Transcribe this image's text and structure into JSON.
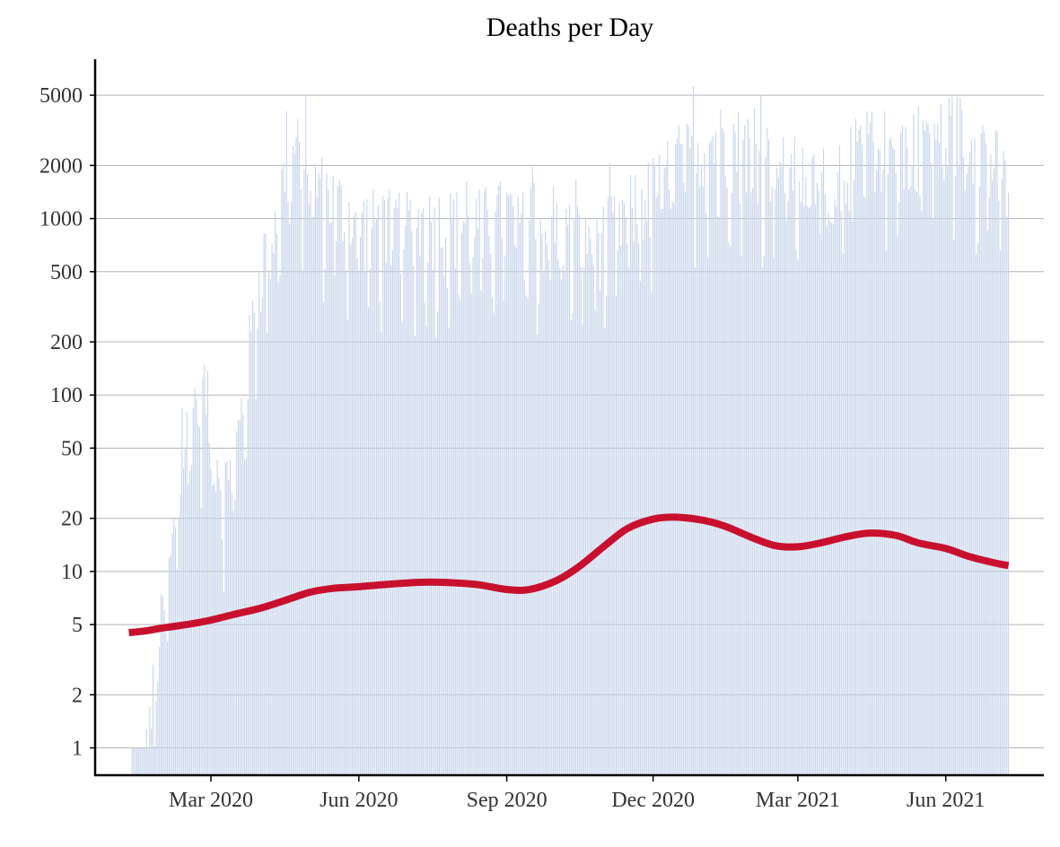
{
  "chart_data": {
    "type": "bar",
    "title": "Deaths per Day",
    "xlabel": "",
    "ylabel": "",
    "y_scale": "log",
    "ylim": [
      0.7,
      8000
    ],
    "x_range": [
      "2019-12-20",
      "2021-08-01"
    ],
    "y_ticks": [
      1,
      2,
      5,
      10,
      20,
      50,
      100,
      200,
      500,
      1000,
      2000,
      5000
    ],
    "y_tick_labels": [
      "1",
      "2",
      "5",
      "10",
      "20",
      "50",
      "100",
      "200",
      "500",
      "1000",
      "2000",
      "5000"
    ],
    "x_ticks": [
      "2020-03-01",
      "2020-06-01",
      "2020-09-01",
      "2020-12-01",
      "2021-03-01",
      "2021-06-01"
    ],
    "x_tick_labels": [
      "Mar 2020",
      "Jun 2020",
      "Sep 2020",
      "Dec 2020",
      "Mar 2021",
      "Jun 2021"
    ],
    "grid": true,
    "bar_color": "#c6d4ea",
    "trend_color": "#c8102e",
    "bar_envelope": {
      "dates": [
        "2020-01-12",
        "2020-01-20",
        "2020-01-28",
        "2020-02-05",
        "2020-02-12",
        "2020-02-19",
        "2020-02-26",
        "2020-03-05",
        "2020-03-12",
        "2020-03-19",
        "2020-03-26",
        "2020-04-02",
        "2020-04-09",
        "2020-04-16",
        "2020-04-23",
        "2020-05-01",
        "2020-05-15",
        "2020-06-01",
        "2020-06-15",
        "2020-07-01",
        "2020-07-15",
        "2020-08-01",
        "2020-08-15",
        "2020-09-01",
        "2020-09-15",
        "2020-10-01",
        "2020-10-15",
        "2020-11-01",
        "2020-11-15",
        "2020-12-01",
        "2020-12-15",
        "2021-01-01",
        "2021-01-15",
        "2021-02-01",
        "2021-02-15",
        "2021-03-01",
        "2021-03-15",
        "2021-04-01",
        "2021-04-15",
        "2021-05-01",
        "2021-05-15",
        "2021-06-01",
        "2021-06-15",
        "2021-07-01",
        "2021-07-10"
      ],
      "max": [
        1,
        1,
        5,
        15,
        60,
        120,
        150,
        60,
        40,
        90,
        300,
        800,
        1200,
        2500,
        3500,
        2500,
        1800,
        1300,
        1300,
        1300,
        1300,
        1300,
        1300,
        1500,
        1200,
        1200,
        1100,
        1100,
        1500,
        2000,
        3000,
        3500,
        4000,
        3500,
        3000,
        2500,
        2200,
        3000,
        3800,
        3500,
        4000,
        4500,
        4500,
        3000,
        2000
      ]
    },
    "series": [
      {
        "name": "",
        "x": [
          "2020-01-10",
          "2020-01-20",
          "2020-02-01",
          "2020-02-15",
          "2020-03-01",
          "2020-03-15",
          "2020-04-01",
          "2020-04-15",
          "2020-05-01",
          "2020-05-15",
          "2020-06-01",
          "2020-06-15",
          "2020-07-01",
          "2020-07-15",
          "2020-08-01",
          "2020-08-15",
          "2020-09-01",
          "2020-09-15",
          "2020-10-01",
          "2020-10-15",
          "2020-11-01",
          "2020-11-15",
          "2020-12-01",
          "2020-12-15",
          "2021-01-01",
          "2021-01-15",
          "2021-02-01",
          "2021-02-15",
          "2021-03-01",
          "2021-03-15",
          "2021-04-01",
          "2021-04-15",
          "2021-05-01",
          "2021-05-15",
          "2021-06-01",
          "2021-06-15",
          "2021-07-01",
          "2021-07-10"
        ],
        "y": [
          4.5,
          4.6,
          4.8,
          5.0,
          5.3,
          5.7,
          6.2,
          6.8,
          7.6,
          8.0,
          8.2,
          8.4,
          8.6,
          8.7,
          8.6,
          8.4,
          7.9,
          7.9,
          8.8,
          10.5,
          14.0,
          17.5,
          19.8,
          20.3,
          19.5,
          18.0,
          15.5,
          14.0,
          13.8,
          14.5,
          15.8,
          16.5,
          16.0,
          14.5,
          13.5,
          12.2,
          11.2,
          10.8
        ]
      }
    ]
  }
}
